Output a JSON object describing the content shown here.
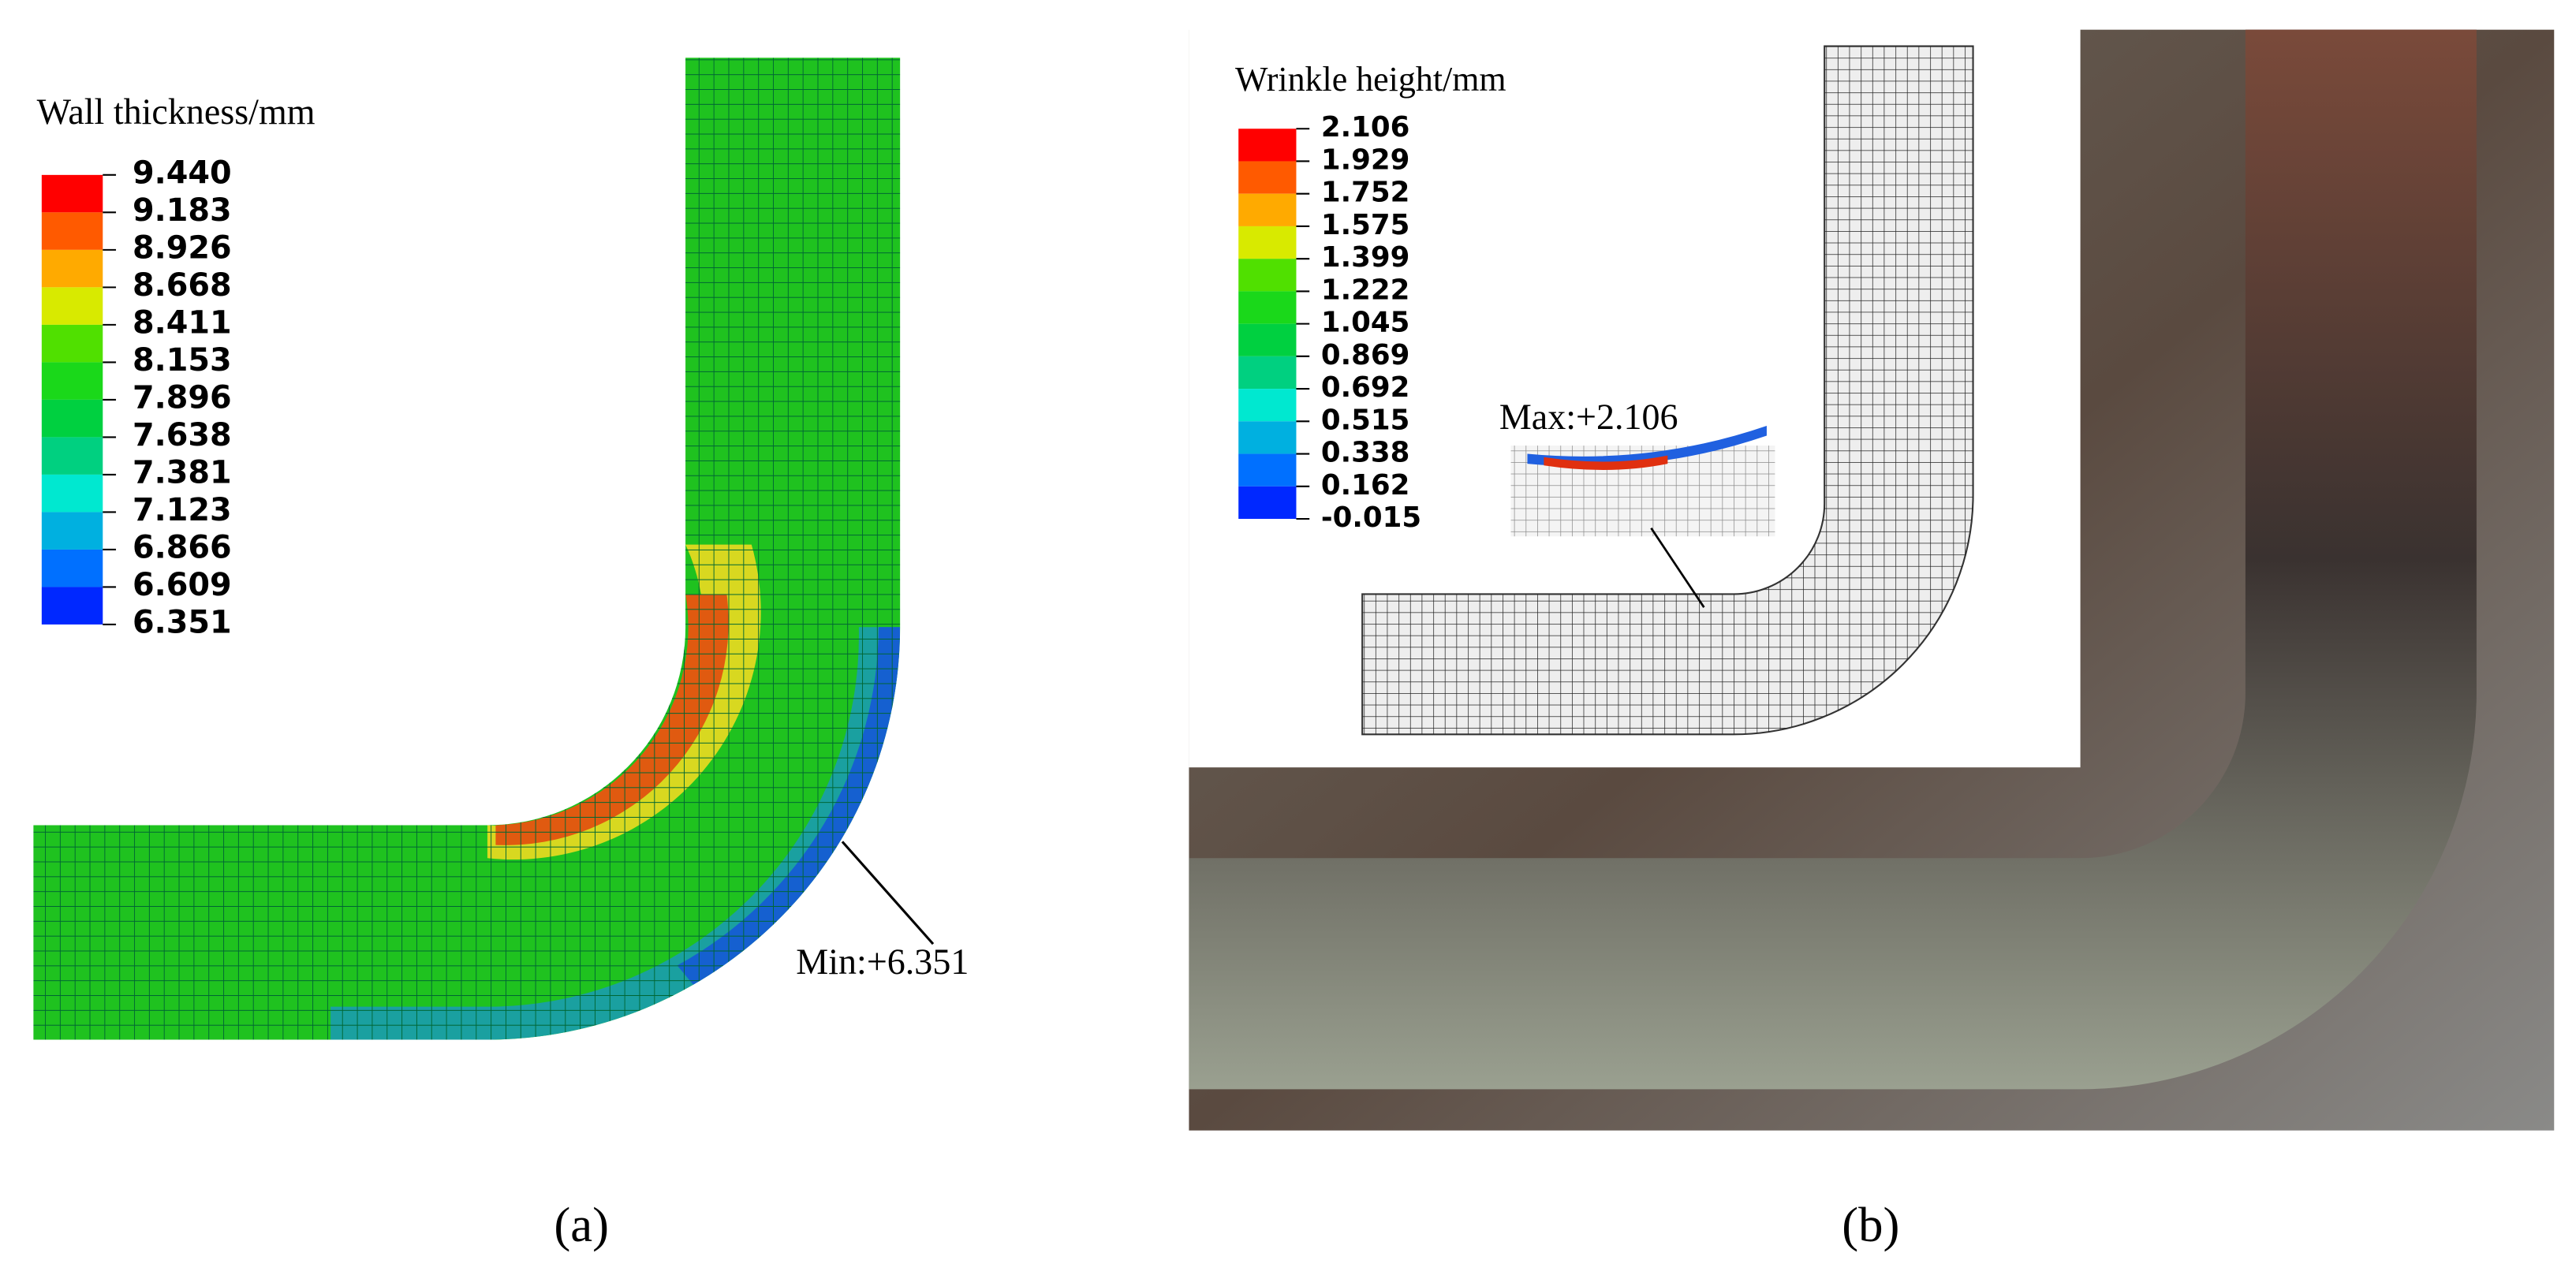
{
  "panel_a": {
    "legend_title": "Wall thickness/mm",
    "legend_labels": [
      "9.440",
      "9.183",
      "8.926",
      "8.668",
      "8.411",
      "8.153",
      "7.896",
      "7.638",
      "7.381",
      "7.123",
      "6.866",
      "6.609",
      "6.351"
    ],
    "annotation": "Min:+6.351",
    "caption": "(a)"
  },
  "panel_b": {
    "legend_title": "Wrinkle height/mm",
    "legend_labels": [
      "2.106",
      "1.929",
      "1.752",
      "1.575",
      "1.399",
      "1.222",
      "1.045",
      "0.869",
      "0.692",
      "0.515",
      "0.338",
      "0.162",
      "-0.015"
    ],
    "annotation": "Max:+2.106",
    "caption": "(b)"
  }
}
